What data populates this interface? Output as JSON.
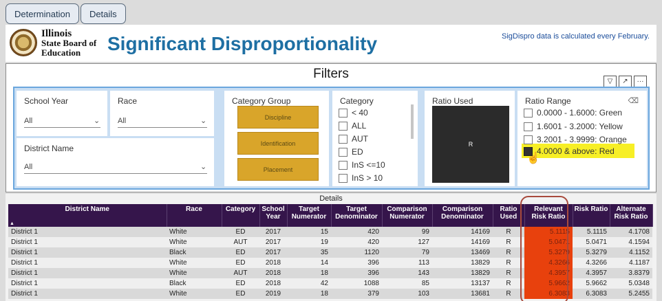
{
  "tabs": [
    "Determination",
    "Details"
  ],
  "header": {
    "logo_line1": "Illinois",
    "logo_line2": "State Board of",
    "logo_line3": "Education",
    "title": "Significant Disproportionality",
    "notice": "SigDispro data is calculated every February."
  },
  "filters": {
    "title": "Filters",
    "school_year": {
      "label": "School Year",
      "value": "All"
    },
    "race": {
      "label": "Race",
      "value": "All"
    },
    "district_name": {
      "label": "District Name",
      "value": "All"
    },
    "category_group": {
      "label": "Category Group",
      "options": [
        "Discipline",
        "Identification",
        "Placement"
      ]
    },
    "category": {
      "label": "Category",
      "options": [
        "< 40",
        "ALL",
        "AUT",
        "ED",
        "InS <=10",
        "InS > 10"
      ]
    },
    "ratio_used": {
      "label": "Ratio Used",
      "value": "R"
    },
    "ratio_range": {
      "label": "Ratio Range",
      "options": [
        {
          "label": "0.0000 - 1.6000: Green",
          "checked": false
        },
        {
          "label": "1.6001 - 3.2000: Yellow",
          "checked": false
        },
        {
          "label": "3.2001 - 3.9999: Orange",
          "checked": false
        },
        {
          "label": "4.0000 & above: Red",
          "checked": true
        }
      ]
    }
  },
  "details": {
    "title": "Details",
    "columns": [
      "District Name",
      "Race",
      "Category",
      "School Year",
      "Target Numerator",
      "Target Denominator",
      "Comparison Numerator",
      "Comparison Denominator",
      "Ratio Used",
      "Relevant Risk Ratio",
      "Risk Ratio",
      "Alternate Risk Ratio"
    ],
    "rows": [
      [
        "District 1",
        "White",
        "ED",
        "2017",
        "15",
        "420",
        "99",
        "14169",
        "R",
        "5.1115",
        "5.1115",
        "4.1708"
      ],
      [
        "District 1",
        "White",
        "AUT",
        "2017",
        "19",
        "420",
        "127",
        "14169",
        "R",
        "5.0471",
        "5.0471",
        "4.1594"
      ],
      [
        "District 1",
        "Black",
        "ED",
        "2017",
        "35",
        "1120",
        "79",
        "13469",
        "R",
        "5.3279",
        "5.3279",
        "4.1152"
      ],
      [
        "District 1",
        "White",
        "ED",
        "2018",
        "14",
        "396",
        "113",
        "13829",
        "R",
        "4.3266",
        "4.3266",
        "4.1187"
      ],
      [
        "District 1",
        "White",
        "AUT",
        "2018",
        "18",
        "396",
        "143",
        "13829",
        "R",
        "4.3957",
        "4.3957",
        "3.8379"
      ],
      [
        "District 1",
        "Black",
        "ED",
        "2018",
        "42",
        "1088",
        "85",
        "13137",
        "R",
        "5.9662",
        "5.9662",
        "5.0348"
      ],
      [
        "District 1",
        "White",
        "ED",
        "2019",
        "18",
        "379",
        "103",
        "13681",
        "R",
        "6.3083",
        "6.3083",
        "5.2455"
      ]
    ]
  },
  "colors": {
    "accent": "#1e6fa3",
    "header_bg": "#35154b",
    "red": "#e8410d",
    "gold": "#d9a52a"
  }
}
